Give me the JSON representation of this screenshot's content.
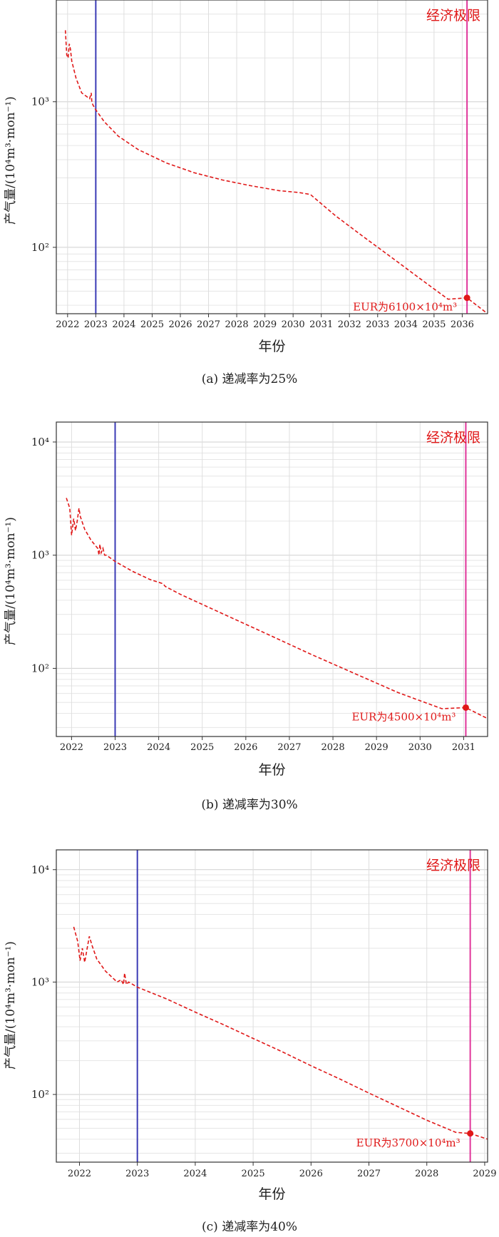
{
  "chart_data": [
    {
      "type": "line",
      "xlabel": "年份",
      "ylabel": "产气量/(10⁴m³·mon⁻¹)",
      "yscale": "log",
      "ylim": [
        35,
        5000
      ],
      "xlim": [
        2021.6,
        2036.9
      ],
      "grid": true,
      "x_tick_labels": [
        "2022",
        "2023",
        "2024",
        "2025",
        "2026",
        "2027",
        "2028",
        "2029",
        "2030",
        "2031",
        "2032",
        "2033",
        "2034",
        "2035",
        "2036"
      ],
      "y_tick_labels": [
        "10³",
        "10²"
      ],
      "y_tick_values": [
        1000,
        100
      ],
      "annotation_limit": "经济极限",
      "annotation_eur": "EUR为6100×10⁴m³",
      "caption": "(a) 递减率为25%",
      "reference_line_year": 2023.0,
      "limit_line_year": 2036.17,
      "series": [
        {
          "x": [
            2021.92,
            2021.97,
            2022.02,
            2022.06,
            2022.1,
            2022.15,
            2022.3,
            2022.5,
            2022.78,
            2022.84,
            2022.86,
            2022.9,
            2023.0,
            2023.3,
            2023.8,
            2024.5,
            2025.5,
            2026.5,
            2027.5,
            2028.5,
            2029.5,
            2030.2,
            2030.55,
            2030.62,
            2031.5,
            2032.5,
            2033.5,
            2034.5,
            2035.5,
            2036.17,
            2036.9
          ],
          "y": [
            3100,
            2100,
            2000,
            2500,
            2300,
            1900,
            1450,
            1150,
            1050,
            1150,
            1000,
            950,
            880,
            730,
            580,
            470,
            380,
            325,
            290,
            265,
            245,
            238,
            232,
            230,
            165,
            118,
            85,
            61,
            44,
            45,
            31
          ]
        }
      ],
      "eur_point": {
        "x": 2036.17,
        "y": 45
      }
    },
    {
      "type": "line",
      "xlabel": "年份",
      "ylabel": "产气量/(10⁴m³·mon⁻¹)",
      "yscale": "log",
      "ylim": [
        25,
        15000
      ],
      "xlim": [
        2021.65,
        2031.55
      ],
      "grid": true,
      "x_tick_labels": [
        "2022",
        "2023",
        "2024",
        "2025",
        "2026",
        "2027",
        "2028",
        "2029",
        "2030",
        "2031"
      ],
      "y_tick_labels": [
        "10⁴",
        "10³",
        "10²"
      ],
      "y_tick_values": [
        10000,
        1000,
        100
      ],
      "annotation_limit": "经济极限",
      "annotation_eur": "EUR为4500×10⁴m³",
      "caption": "(b) 递减率为30%",
      "reference_line_year": 2023.0,
      "limit_line_year": 2031.05,
      "series": [
        {
          "x": [
            2021.88,
            2021.96,
            2022.0,
            2022.05,
            2022.09,
            2022.13,
            2022.17,
            2022.2,
            2022.3,
            2022.45,
            2022.6,
            2022.63,
            2022.65,
            2022.68,
            2022.72,
            2022.76,
            2022.8,
            2023.0,
            2023.4,
            2023.8,
            2024.1,
            2024.15,
            2024.5,
            2025.5,
            2026.5,
            2027.5,
            2028.5,
            2029.5,
            2030.5,
            2031.05,
            2031.55
          ],
          "y": [
            3200,
            2600,
            1500,
            2100,
            1650,
            2000,
            2600,
            2200,
            1700,
            1350,
            1150,
            1000,
            1250,
            1050,
            1150,
            1000,
            1000,
            880,
            720,
            610,
            560,
            530,
            450,
            300,
            200,
            133,
            90,
            61,
            44,
            45,
            36
          ]
        }
      ],
      "eur_point": {
        "x": 2031.05,
        "y": 45
      }
    },
    {
      "type": "line",
      "xlabel": "年份",
      "ylabel": "产气量/(10⁴m³·mon⁻¹)",
      "yscale": "log",
      "ylim": [
        25,
        15000
      ],
      "xlim": [
        2021.6,
        2029.05
      ],
      "grid": true,
      "x_tick_labels": [
        "2022",
        "2023",
        "2024",
        "2025",
        "2026",
        "2027",
        "2028",
        "2029"
      ],
      "y_tick_labels": [
        "10⁴",
        "10³",
        "10²"
      ],
      "y_tick_values": [
        10000,
        1000,
        100
      ],
      "annotation_limit": "经济极限",
      "annotation_eur": "EUR为3700×10⁴m³",
      "caption": "(c) 递减率为40%",
      "reference_line_year": 2023.0,
      "limit_line_year": 2028.75,
      "series": [
        {
          "x": [
            2021.9,
            2021.97,
            2022.01,
            2022.05,
            2022.09,
            2022.13,
            2022.17,
            2022.22,
            2022.3,
            2022.45,
            2022.65,
            2022.72,
            2022.76,
            2022.78,
            2022.81,
            2022.85,
            2023.0,
            2023.5,
            2024.0,
            2024.5,
            2025.0,
            2025.5,
            2026.0,
            2026.5,
            2027.0,
            2027.5,
            2028.0,
            2028.5,
            2028.75,
            2029.05
          ],
          "y": [
            3100,
            2300,
            1550,
            2000,
            1500,
            1950,
            2550,
            2100,
            1600,
            1250,
            1000,
            1050,
            950,
            1200,
            950,
            1000,
            900,
            710,
            540,
            415,
            315,
            240,
            180,
            137,
            103,
            78,
            59,
            46,
            45,
            40
          ]
        }
      ],
      "eur_point": {
        "x": 2028.75,
        "y": 45
      }
    }
  ]
}
